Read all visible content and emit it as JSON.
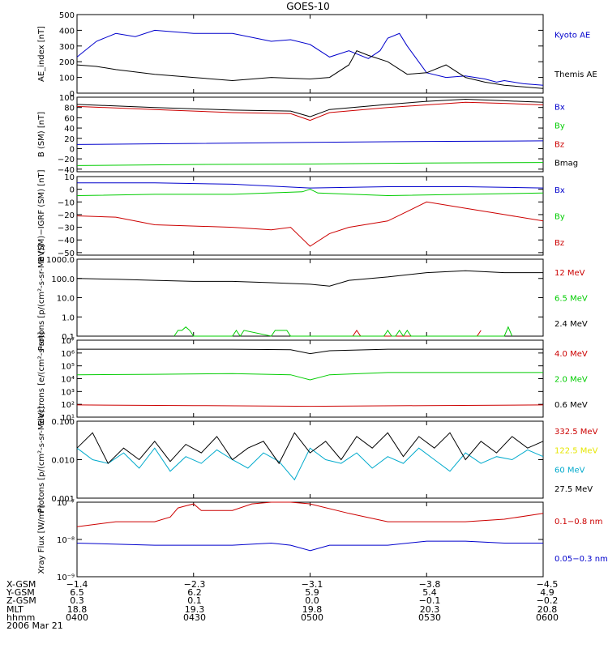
{
  "title": "GOES-10",
  "colors": {
    "black": "#000000",
    "blue": "#0000cc",
    "red": "#cc0000",
    "green": "#00cc00",
    "cyan": "#00aacc",
    "yellow": "#e6e600"
  },
  "chart_data": [
    {
      "type": "line",
      "ylabel": "AE_index [nT]",
      "ylim": [
        0,
        500
      ],
      "y_ticks": [
        0,
        100,
        200,
        300,
        400,
        500
      ],
      "y_tick_labels": [
        "0",
        "100",
        "200",
        "300",
        "400",
        "500"
      ],
      "x_time_range": [
        "0400",
        "0600"
      ],
      "series": [
        {
          "name": "Kyoto AE",
          "color": "#0000cc",
          "x": [
            0,
            5,
            10,
            15,
            20,
            30,
            40,
            50,
            55,
            60,
            65,
            70,
            75,
            78,
            80,
            83,
            85,
            90,
            95,
            100,
            105,
            108,
            110,
            115,
            120
          ],
          "y": [
            230,
            330,
            380,
            360,
            400,
            380,
            380,
            330,
            340,
            310,
            230,
            270,
            220,
            270,
            350,
            380,
            300,
            130,
            100,
            110,
            90,
            70,
            80,
            60,
            50
          ]
        },
        {
          "name": "Themis AE",
          "color": "#000000",
          "x": [
            0,
            5,
            10,
            20,
            30,
            40,
            50,
            60,
            65,
            70,
            72,
            75,
            80,
            85,
            90,
            95,
            100,
            105,
            110,
            115,
            120
          ],
          "y": [
            180,
            170,
            150,
            120,
            100,
            80,
            100,
            90,
            100,
            180,
            270,
            240,
            200,
            120,
            130,
            180,
            100,
            70,
            50,
            40,
            30
          ]
        }
      ]
    },
    {
      "type": "line",
      "ylabel": "B (SM) [nT]",
      "ylim": [
        -45,
        100
      ],
      "y_ticks": [
        -40,
        -20,
        0,
        20,
        40,
        60,
        80,
        100
      ],
      "y_tick_labels": [
        "−40",
        "−20",
        "0",
        "20",
        "40",
        "60",
        "80",
        "100"
      ],
      "series": [
        {
          "name": "Bx",
          "color": "#0000cc",
          "x": [
            0,
            30,
            60,
            90,
            120
          ],
          "y": [
            8,
            10,
            12,
            14,
            15
          ]
        },
        {
          "name": "By",
          "color": "#00cc00",
          "x": [
            0,
            30,
            60,
            90,
            120
          ],
          "y": [
            -33,
            -31,
            -30,
            -28,
            -27
          ]
        },
        {
          "name": "Bz",
          "color": "#cc0000",
          "x": [
            0,
            20,
            40,
            55,
            60,
            65,
            80,
            90,
            100,
            110,
            120
          ],
          "y": [
            82,
            76,
            70,
            68,
            55,
            70,
            80,
            85,
            90,
            88,
            85
          ]
        },
        {
          "name": "Bmag",
          "color": "#000000",
          "x": [
            0,
            20,
            40,
            55,
            60,
            65,
            80,
            90,
            100,
            110,
            120
          ],
          "y": [
            86,
            80,
            75,
            73,
            62,
            76,
            86,
            92,
            96,
            93,
            90
          ]
        }
      ]
    },
    {
      "type": "line",
      "ylabel": "B (SM)−IGRF (SM) [nT]",
      "ylim": [
        -52,
        10
      ],
      "y_ticks": [
        -50,
        -40,
        -30,
        -20,
        -10,
        0,
        10
      ],
      "y_tick_labels": [
        "−50",
        "−40",
        "−30",
        "−20",
        "−10",
        "0",
        "10"
      ],
      "series": [
        {
          "name": "Bx",
          "color": "#0000cc",
          "x": [
            0,
            20,
            40,
            60,
            80,
            100,
            120
          ],
          "y": [
            5,
            5,
            4,
            1,
            2,
            2,
            1
          ]
        },
        {
          "name": "By",
          "color": "#00cc00",
          "x": [
            0,
            20,
            40,
            58,
            60,
            62,
            80,
            100,
            120
          ],
          "y": [
            -5,
            -4,
            -4,
            -2,
            0,
            -3,
            -5,
            -4,
            -3
          ]
        },
        {
          "name": "Bz",
          "color": "#cc0000",
          "x": [
            0,
            10,
            20,
            40,
            50,
            55,
            60,
            65,
            70,
            80,
            90,
            100,
            110,
            120
          ],
          "y": [
            -21,
            -22,
            -28,
            -30,
            -32,
            -30,
            -45,
            -35,
            -30,
            -25,
            -10,
            -15,
            -20,
            -25
          ]
        }
      ]
    },
    {
      "type": "line",
      "scale": "log",
      "ylabel": "Protons [p/(cm²-s-sr-MeV)]",
      "ylim": [
        0.1,
        1000
      ],
      "y_ticks": [
        0.1,
        1,
        10,
        100,
        1000
      ],
      "y_tick_labels": [
        "0.1",
        "1.0",
        "10.0",
        "100.0",
        "1000.0"
      ],
      "series": [
        {
          "name": "12 MeV",
          "color": "#cc0000",
          "x": [
            71,
            72,
            73,
            103,
            104
          ],
          "y": [
            0.1,
            0.2,
            0.1,
            0.1,
            0.2
          ]
        },
        {
          "name": "6.5 MeV",
          "color": "#00cc00",
          "x": [
            25,
            26,
            27,
            28,
            29,
            30,
            40,
            41,
            42,
            42,
            43,
            50,
            51,
            52,
            53,
            54,
            55,
            78,
            79,
            80,
            81,
            82,
            83,
            84,
            85,
            86,
            110,
            111,
            112
          ],
          "y": [
            0.1,
            0.2,
            0.2,
            0.3,
            0.2,
            0.1,
            0.1,
            0.2,
            0.1,
            0.1,
            0.2,
            0.1,
            0.2,
            0.2,
            0.2,
            0.2,
            0.1,
            0.1,
            0.1,
            0.2,
            0.1,
            0.1,
            0.2,
            0.1,
            0.2,
            0.1,
            0.1,
            0.3,
            0.1
          ]
        },
        {
          "name": "2.4 MeV",
          "color": "#000000",
          "x": [
            0,
            10,
            20,
            30,
            40,
            50,
            60,
            65,
            70,
            80,
            90,
            100,
            110,
            120
          ],
          "y": [
            100,
            90,
            80,
            70,
            70,
            60,
            50,
            40,
            80,
            120,
            200,
            250,
            200,
            200
          ]
        }
      ]
    },
    {
      "type": "line",
      "scale": "log",
      "ylabel": "Electrons [e/(cm²-s-sr)]",
      "ylim": [
        10,
        10000000
      ],
      "y_ticks": [
        10,
        100,
        1000,
        10000,
        100000,
        1000000,
        10000000
      ],
      "y_tick_labels": [
        "10¹",
        "10²",
        "10³",
        "10⁴",
        "10⁵",
        "10⁶",
        "10⁷"
      ],
      "series": [
        {
          "name": "4.0 MeV",
          "color": "#cc0000",
          "x": [
            0,
            30,
            60,
            90,
            120
          ],
          "y": [
            90,
            80,
            70,
            80,
            90
          ]
        },
        {
          "name": "2.0 MeV",
          "color": "#00cc00",
          "x": [
            0,
            20,
            40,
            55,
            60,
            65,
            80,
            100,
            120
          ],
          "y": [
            20000,
            22000,
            25000,
            20000,
            8000,
            20000,
            30000,
            30000,
            30000
          ]
        },
        {
          "name": "0.6 MeV",
          "color": "#000000",
          "x": [
            0,
            40,
            55,
            60,
            65,
            80,
            120
          ],
          "y": [
            2000000,
            2000000,
            1800000,
            900000,
            1500000,
            2000000,
            2000000
          ]
        }
      ]
    },
    {
      "type": "line",
      "scale": "log",
      "ylabel": "Protons [p/(cm²-s-sr-MeV)]",
      "ylim": [
        0.001,
        0.1
      ],
      "y_ticks": [
        0.001,
        0.01,
        0.1
      ],
      "y_tick_labels": [
        "0.001",
        "0.010",
        "0.100"
      ],
      "series": [
        {
          "name": "332.5 MeV",
          "color": "#cc0000",
          "x": [],
          "y": []
        },
        {
          "name": "122.5 MeV",
          "color": "#e6e600",
          "x": [],
          "y": []
        },
        {
          "name": "60 MeV",
          "color": "#00aacc",
          "x": [
            0,
            4,
            8,
            12,
            16,
            20,
            24,
            28,
            32,
            36,
            40,
            44,
            48,
            52,
            56,
            60,
            64,
            68,
            72,
            76,
            80,
            84,
            88,
            92,
            96,
            100,
            104,
            108,
            112,
            116,
            120
          ],
          "y": [
            0.02,
            0.01,
            0.008,
            0.015,
            0.006,
            0.02,
            0.005,
            0.012,
            0.008,
            0.018,
            0.01,
            0.006,
            0.015,
            0.009,
            0.003,
            0.02,
            0.01,
            0.008,
            0.015,
            0.006,
            0.012,
            0.008,
            0.02,
            0.01,
            0.005,
            0.015,
            0.008,
            0.012,
            0.01,
            0.018,
            0.012
          ]
        },
        {
          "name": "27.5 MeV",
          "color": "#000000",
          "x": [
            0,
            4,
            8,
            12,
            16,
            20,
            24,
            28,
            32,
            36,
            40,
            44,
            48,
            52,
            56,
            60,
            64,
            68,
            72,
            76,
            80,
            84,
            88,
            92,
            96,
            100,
            104,
            108,
            112,
            116,
            120
          ],
          "y": [
            0.02,
            0.05,
            0.008,
            0.02,
            0.01,
            0.03,
            0.009,
            0.025,
            0.015,
            0.04,
            0.01,
            0.02,
            0.03,
            0.008,
            0.05,
            0.015,
            0.03,
            0.01,
            0.04,
            0.02,
            0.05,
            0.012,
            0.04,
            0.02,
            0.05,
            0.01,
            0.03,
            0.015,
            0.04,
            0.02,
            0.03
          ]
        }
      ]
    },
    {
      "type": "line",
      "scale": "log",
      "ylabel": "Xray Flux [W/m²]",
      "ylim": [
        1e-09,
        1e-07
      ],
      "y_ticks": [
        1e-09,
        1e-08,
        1e-07
      ],
      "y_tick_labels": [
        "10⁻⁹",
        "10⁻⁸",
        "10⁻⁷"
      ],
      "series": [
        {
          "name": "0.1−0.8 nm",
          "color": "#cc0000",
          "x": [
            0,
            10,
            20,
            24,
            26,
            28,
            30,
            32,
            40,
            45,
            50,
            55,
            60,
            70,
            80,
            90,
            100,
            110,
            120
          ],
          "y": [
            2.2e-08,
            3e-08,
            3e-08,
            4e-08,
            7e-08,
            8e-08,
            9e-08,
            6e-08,
            6e-08,
            9e-08,
            1e-07,
            1e-07,
            9e-08,
            5e-08,
            3e-08,
            3e-08,
            3e-08,
            3.5e-08,
            5e-08
          ]
        },
        {
          "name": "0.05−0.3 nm",
          "color": "#0000cc",
          "x": [
            0,
            20,
            40,
            50,
            55,
            60,
            65,
            80,
            90,
            100,
            110,
            120
          ],
          "y": [
            8e-09,
            7e-09,
            7e-09,
            8e-09,
            7e-09,
            5e-09,
            7e-09,
            7e-09,
            9e-09,
            9e-09,
            8e-09,
            8e-09
          ]
        }
      ]
    }
  ],
  "footer": {
    "row_labels": [
      "X-GSM",
      "Y-GSM",
      "Z-GSM",
      "MLT",
      "hhmm"
    ],
    "date": "2006 Mar 21",
    "ticks": [
      [
        "−1.4",
        "6.5",
        "0.3",
        "18.8",
        "0400"
      ],
      [
        "−2.3",
        "6.2",
        "0.1",
        "19.3",
        "0430"
      ],
      [
        "−3.1",
        "5.9",
        "0.0",
        "19.8",
        "0500"
      ],
      [
        "−3.8",
        "5.4",
        "−0.1",
        "20.3",
        "0530"
      ],
      [
        "−4.5",
        "4.9",
        "−0.2",
        "20.8",
        "0600"
      ]
    ]
  }
}
